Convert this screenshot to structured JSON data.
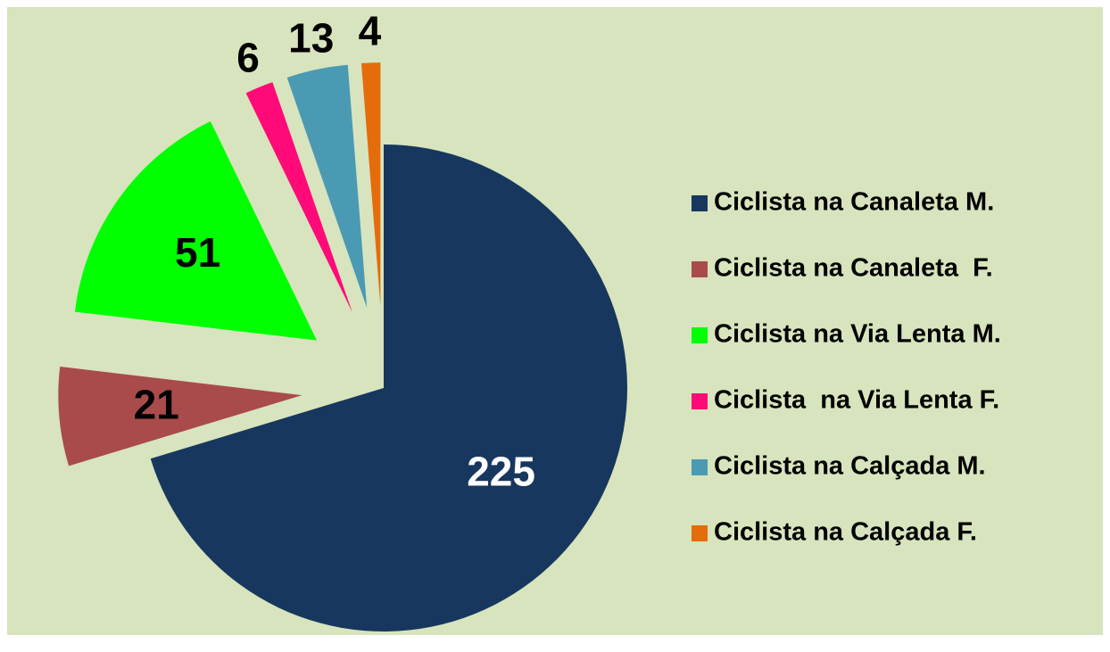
{
  "chart_data": {
    "type": "pie",
    "categories": [
      "Ciclista na Canaleta M.",
      "Ciclista na Canaleta  F.",
      "Ciclista na Via Lenta M.",
      "Ciclista  na Via Lenta F.",
      "Ciclista na Calçada M.",
      "Ciclista na Calçada F."
    ],
    "values": [
      225,
      21,
      51,
      6,
      13,
      4
    ],
    "colors": [
      "#17375e",
      "#a94b4b",
      "#00ff00",
      "#ff0a78",
      "#4a9ab4",
      "#e46c0a"
    ],
    "label_colors": [
      "#ffffff",
      "#000000",
      "#000000",
      "#000000",
      "#000000",
      "#000000"
    ],
    "legend": "right"
  }
}
